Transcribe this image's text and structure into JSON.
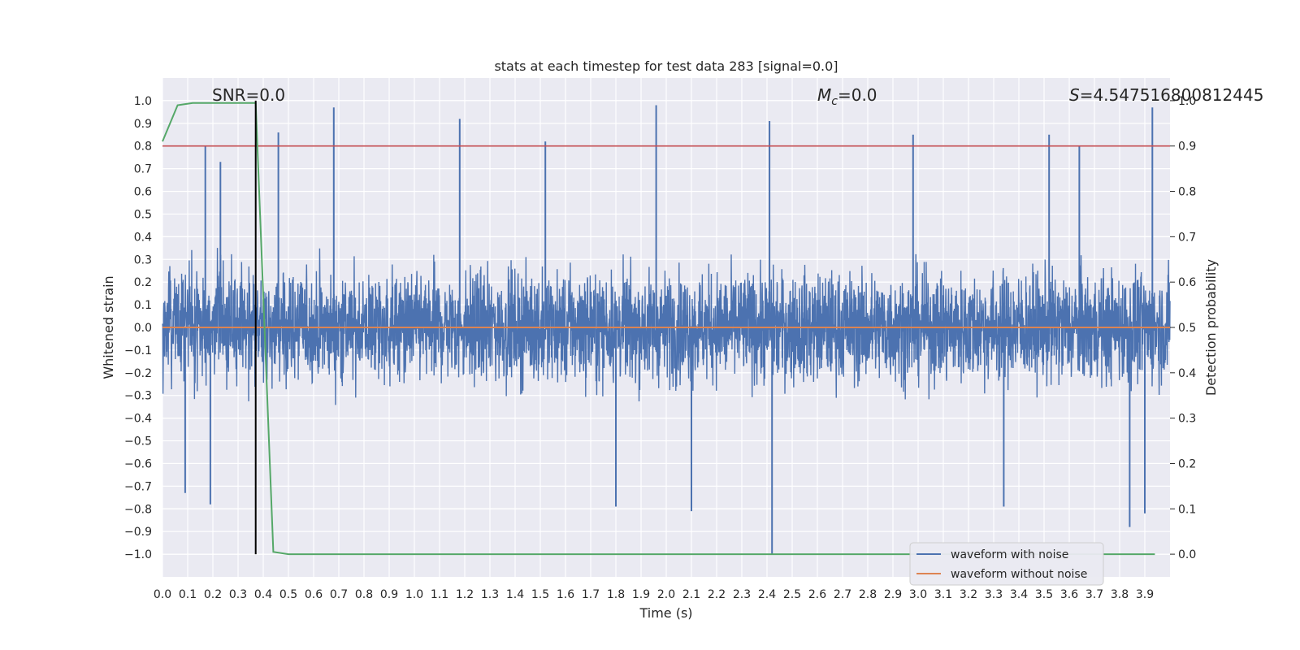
{
  "chart_data": {
    "type": "line",
    "title": "stats at each timestep for test data 283 [signal=0.0]",
    "xlabel": "Time (s)",
    "ylabel": "Whitened strain",
    "y2label": "Detection probability",
    "xlim": [
      0.0,
      4.0
    ],
    "ylim": [
      -1.1,
      1.1
    ],
    "y2lim": [
      -0.05,
      1.05
    ],
    "x_ticks": [
      0.0,
      0.1,
      0.2,
      0.3,
      0.4,
      0.5,
      0.6,
      0.7,
      0.8,
      0.9,
      1.0,
      1.1,
      1.2,
      1.3,
      1.4,
      1.5,
      1.6,
      1.7,
      1.8,
      1.9,
      2.0,
      2.1,
      2.2,
      2.3,
      2.4,
      2.5,
      2.6,
      2.7,
      2.8,
      2.9,
      3.0,
      3.1,
      3.2,
      3.3,
      3.4,
      3.5,
      3.6,
      3.7,
      3.8,
      3.9
    ],
    "y_ticks": [
      1.0,
      0.9,
      0.8,
      0.7,
      0.6,
      0.5,
      0.4,
      0.3,
      0.2,
      0.1,
      0.0,
      -0.1,
      -0.2,
      -0.3,
      -0.4,
      -0.5,
      -0.6,
      -0.7,
      -0.8,
      -0.9,
      -1.0
    ],
    "y2_ticks": [
      1.0,
      0.9,
      0.8,
      0.7,
      0.6,
      0.5,
      0.4,
      0.3,
      0.2,
      0.1,
      0.0
    ],
    "grid": true,
    "legend_position": "bottom-right",
    "annotations": [
      {
        "text": "SNR=0.0",
        "x": 0.2,
        "y": 1.0
      },
      {
        "text_main": "M",
        "text_sub": "c",
        "text_rest": "=0.0",
        "x": 2.6,
        "y": 1.0
      },
      {
        "text_main": "S",
        "text_rest": "=4.547516800812445",
        "x": 3.6,
        "y": 1.0
      }
    ],
    "series": [
      {
        "name": "waveform with noise",
        "color": "#4c72b0",
        "description": "dense noisy strain, mostly between -0.45 and 0.45",
        "peaks": [
          {
            "x": 0.17,
            "y": 0.8
          },
          {
            "x": 0.23,
            "y": 0.73
          },
          {
            "x": 0.46,
            "y": 0.86
          },
          {
            "x": 0.68,
            "y": 0.97
          },
          {
            "x": 1.18,
            "y": 0.92
          },
          {
            "x": 1.52,
            "y": 0.82
          },
          {
            "x": 1.96,
            "y": 0.98
          },
          {
            "x": 2.41,
            "y": 0.91
          },
          {
            "x": 2.98,
            "y": 0.85
          },
          {
            "x": 3.52,
            "y": 0.85
          },
          {
            "x": 3.64,
            "y": 0.8
          },
          {
            "x": 3.93,
            "y": 0.97
          }
        ],
        "troughs": [
          {
            "x": 0.09,
            "y": -0.73
          },
          {
            "x": 0.19,
            "y": -0.78
          },
          {
            "x": 1.8,
            "y": -0.79
          },
          {
            "x": 2.1,
            "y": -0.81
          },
          {
            "x": 2.42,
            "y": -1.0
          },
          {
            "x": 3.34,
            "y": -0.79
          },
          {
            "x": 3.84,
            "y": -0.88
          },
          {
            "x": 3.9,
            "y": -0.82
          }
        ]
      },
      {
        "name": "waveform without noise",
        "color": "#dd8452",
        "x": [
          0.0,
          4.0
        ],
        "y": [
          0.0,
          0.0
        ]
      }
    ],
    "detection_probability": {
      "color": "#55a868",
      "x": [
        0.0,
        0.06,
        0.12,
        0.18,
        0.25,
        0.31,
        0.37,
        0.44,
        0.5,
        0.56,
        1.0,
        2.0,
        3.0,
        3.94
      ],
      "y": [
        0.91,
        0.99,
        0.995,
        0.995,
        0.995,
        0.995,
        0.995,
        0.005,
        0.0,
        0.0,
        0.0,
        0.0,
        0.0,
        0.0
      ]
    },
    "threshold_line": {
      "color": "#c44e52",
      "y2": 0.9
    },
    "vertical_marker": {
      "color": "#000000",
      "x": 0.37
    }
  }
}
